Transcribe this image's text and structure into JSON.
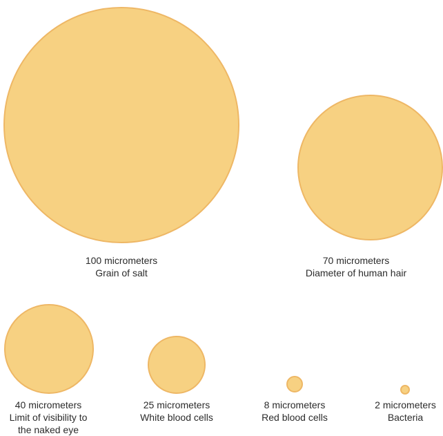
{
  "colors": {
    "circle_fill": "#f7d182",
    "circle_stroke": "#eeb765"
  },
  "items": [
    {
      "id": "salt",
      "size": "100 micrometers",
      "label": "Grain of salt",
      "diameter_um": 100
    },
    {
      "id": "hair",
      "size": "70 micrometers",
      "label": "Diameter of human hair",
      "diameter_um": 70
    },
    {
      "id": "eye",
      "size": "40 micrometers",
      "label": "Limit of visibility to",
      "label2": "the naked eye",
      "diameter_um": 40
    },
    {
      "id": "wbc",
      "size": "25 micrometers",
      "label": "White blood cells",
      "diameter_um": 25
    },
    {
      "id": "rbc",
      "size": "8 micrometers",
      "label": "Red blood cells",
      "diameter_um": 8
    },
    {
      "id": "bact",
      "size": "2 micrometers",
      "label": "Bacteria",
      "diameter_um": 2
    }
  ]
}
